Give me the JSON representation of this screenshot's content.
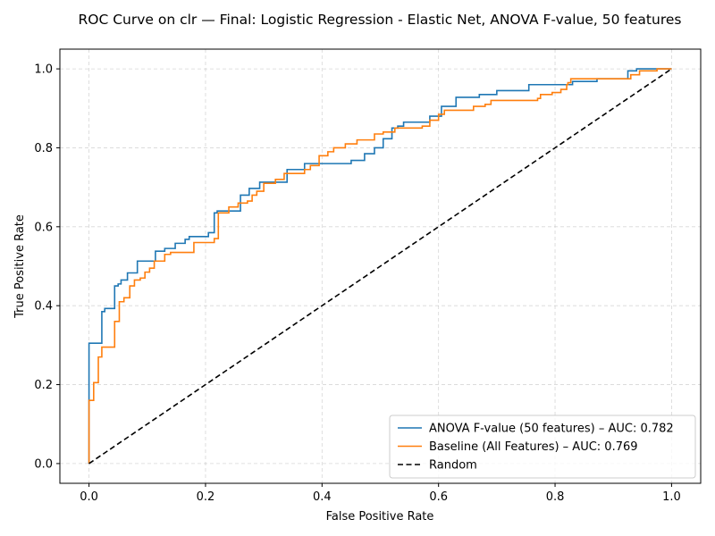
{
  "chart_data": {
    "type": "line",
    "title": "ROC Curve on clr — Final: Logistic Regression - Elastic Net, ANOVA F-value, 50 features",
    "xlabel": "False Positive Rate",
    "ylabel": "True Positive Rate",
    "xlim": [
      -0.05,
      1.05
    ],
    "ylim": [
      -0.05,
      1.05
    ],
    "xticks": [
      0.0,
      0.2,
      0.4,
      0.6,
      0.8,
      1.0
    ],
    "yticks": [
      0.0,
      0.2,
      0.4,
      0.6,
      0.8,
      1.0
    ],
    "xtick_labels": [
      "0.0",
      "0.2",
      "0.4",
      "0.6",
      "0.8",
      "1.0"
    ],
    "ytick_labels": [
      "0.0",
      "0.2",
      "0.4",
      "0.6",
      "0.8",
      "1.0"
    ],
    "grid": true,
    "legend_position": "lower-right",
    "series": [
      {
        "name": "ANOVA F-value (50 features) – AUC: 0.782",
        "color": "#1f77b4",
        "style": "solid",
        "step": true,
        "x": [
          0.0,
          0.0,
          0.022,
          0.022,
          0.027,
          0.027,
          0.044,
          0.044,
          0.05,
          0.05,
          0.055,
          0.055,
          0.066,
          0.066,
          0.083,
          0.083,
          0.114,
          0.114,
          0.13,
          0.13,
          0.148,
          0.148,
          0.165,
          0.165,
          0.172,
          0.172,
          0.205,
          0.205,
          0.215,
          0.215,
          0.22,
          0.22,
          0.26,
          0.26,
          0.275,
          0.275,
          0.293,
          0.293,
          0.34,
          0.34,
          0.37,
          0.37,
          0.385,
          0.385,
          0.45,
          0.45,
          0.473,
          0.473,
          0.49,
          0.49,
          0.505,
          0.505,
          0.52,
          0.52,
          0.53,
          0.53,
          0.54,
          0.54,
          0.585,
          0.585,
          0.605,
          0.605,
          0.63,
          0.63,
          0.67,
          0.67,
          0.7,
          0.7,
          0.755,
          0.755,
          0.83,
          0.83,
          0.872,
          0.872,
          0.925,
          0.925,
          0.94,
          0.94,
          1.0
        ],
        "y": [
          0.0,
          0.305,
          0.305,
          0.385,
          0.385,
          0.393,
          0.393,
          0.45,
          0.45,
          0.455,
          0.455,
          0.465,
          0.465,
          0.483,
          0.483,
          0.513,
          0.513,
          0.538,
          0.538,
          0.545,
          0.545,
          0.558,
          0.558,
          0.568,
          0.568,
          0.575,
          0.575,
          0.585,
          0.585,
          0.635,
          0.635,
          0.64,
          0.64,
          0.68,
          0.68,
          0.697,
          0.697,
          0.713,
          0.713,
          0.745,
          0.745,
          0.76,
          0.76,
          0.76,
          0.76,
          0.768,
          0.768,
          0.785,
          0.785,
          0.8,
          0.8,
          0.823,
          0.823,
          0.85,
          0.85,
          0.855,
          0.855,
          0.865,
          0.865,
          0.88,
          0.88,
          0.905,
          0.905,
          0.928,
          0.928,
          0.935,
          0.935,
          0.945,
          0.945,
          0.96,
          0.96,
          0.968,
          0.968,
          0.975,
          0.975,
          0.995,
          0.995,
          1.0,
          1.0
        ]
      },
      {
        "name": "Baseline (All Features) – AUC: 0.769",
        "color": "#ff7f0e",
        "style": "solid",
        "step": true,
        "x": [
          0.0,
          0.0,
          0.008,
          0.008,
          0.016,
          0.016,
          0.022,
          0.022,
          0.044,
          0.044,
          0.052,
          0.052,
          0.06,
          0.06,
          0.07,
          0.07,
          0.078,
          0.078,
          0.088,
          0.088,
          0.096,
          0.096,
          0.104,
          0.104,
          0.112,
          0.112,
          0.13,
          0.13,
          0.14,
          0.14,
          0.18,
          0.18,
          0.215,
          0.215,
          0.222,
          0.222,
          0.24,
          0.24,
          0.256,
          0.256,
          0.272,
          0.272,
          0.28,
          0.28,
          0.288,
          0.288,
          0.3,
          0.3,
          0.32,
          0.32,
          0.335,
          0.335,
          0.37,
          0.37,
          0.38,
          0.38,
          0.395,
          0.395,
          0.41,
          0.41,
          0.42,
          0.42,
          0.44,
          0.44,
          0.46,
          0.46,
          0.49,
          0.49,
          0.505,
          0.505,
          0.525,
          0.525,
          0.53,
          0.53,
          0.572,
          0.572,
          0.585,
          0.585,
          0.6,
          0.6,
          0.61,
          0.61,
          0.66,
          0.66,
          0.68,
          0.68,
          0.69,
          0.69,
          0.77,
          0.77,
          0.775,
          0.775,
          0.795,
          0.795,
          0.81,
          0.81,
          0.82,
          0.82,
          0.822,
          0.822,
          0.827,
          0.827,
          0.87,
          0.87,
          0.93,
          0.93,
          0.945,
          0.945,
          0.975,
          0.975,
          1.0
        ],
        "y": [
          0.0,
          0.16,
          0.16,
          0.205,
          0.205,
          0.27,
          0.27,
          0.295,
          0.295,
          0.36,
          0.36,
          0.41,
          0.41,
          0.42,
          0.42,
          0.45,
          0.45,
          0.465,
          0.465,
          0.47,
          0.47,
          0.485,
          0.485,
          0.495,
          0.495,
          0.513,
          0.513,
          0.53,
          0.53,
          0.535,
          0.535,
          0.56,
          0.56,
          0.57,
          0.57,
          0.635,
          0.635,
          0.65,
          0.65,
          0.66,
          0.66,
          0.665,
          0.665,
          0.68,
          0.68,
          0.69,
          0.69,
          0.71,
          0.71,
          0.72,
          0.72,
          0.735,
          0.735,
          0.745,
          0.745,
          0.755,
          0.755,
          0.78,
          0.78,
          0.79,
          0.79,
          0.8,
          0.8,
          0.81,
          0.81,
          0.82,
          0.82,
          0.835,
          0.835,
          0.84,
          0.84,
          0.85,
          0.85,
          0.85,
          0.85,
          0.855,
          0.855,
          0.87,
          0.87,
          0.885,
          0.885,
          0.895,
          0.895,
          0.905,
          0.905,
          0.91,
          0.91,
          0.92,
          0.92,
          0.925,
          0.925,
          0.935,
          0.935,
          0.94,
          0.94,
          0.948,
          0.948,
          0.96,
          0.96,
          0.965,
          0.965,
          0.975,
          0.975,
          0.975,
          0.975,
          0.985,
          0.985,
          0.995,
          0.995,
          1.0,
          1.0
        ]
      },
      {
        "name": "Random",
        "color": "#000000",
        "style": "dashed",
        "step": false,
        "x": [
          0.0,
          1.0
        ],
        "y": [
          0.0,
          1.0
        ]
      }
    ]
  }
}
